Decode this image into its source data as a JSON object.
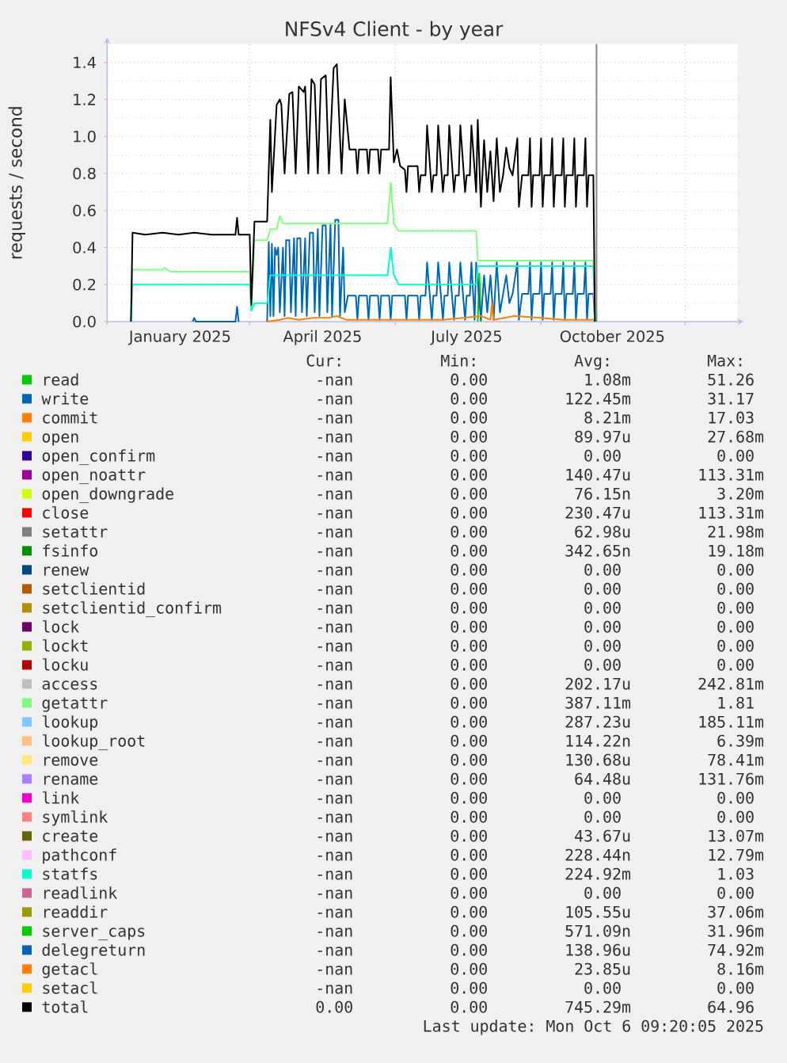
{
  "chart_data": {
    "type": "line",
    "title": "NFSv4 Client - by year",
    "ylabel": "requests / second",
    "xlim": [
      "2024-12-01",
      "2026-01-03"
    ],
    "xticks": [
      {
        "value": "2024-12-01",
        "label": null
      },
      {
        "value": "2025-01-16",
        "label": "January 2025"
      },
      {
        "value": "2025-03-01",
        "label": null
      },
      {
        "value": "2025-04-16",
        "label": "April 2025"
      },
      {
        "value": "2025-06-01",
        "label": null
      },
      {
        "value": "2025-07-16",
        "label": "July 2025"
      },
      {
        "value": "2025-09-01",
        "label": null
      },
      {
        "value": "2025-10-16",
        "label": "October 2025"
      },
      {
        "value": "2025-12-01",
        "label": null
      }
    ],
    "ylim": [
      0,
      1.5
    ],
    "yticks": [
      {
        "value": 0,
        "label": "0.0"
      },
      0.2,
      0.4,
      0.6,
      0.8,
      {
        "value": 1,
        "label": "1.0"
      },
      1.2,
      1.4
    ],
    "grid": true,
    "legend": "bottom",
    "ref_lines": [
      {
        "axis": "x",
        "value": "2025-10-06",
        "color": "#888888"
      }
    ],
    "series": [
      {
        "name": "read",
        "color": "#00cc00",
        "x": [
          "2025-07-23",
          "2025-07-24",
          "2025-07-25"
        ],
        "values": [
          0,
          0.26,
          0
        ]
      },
      {
        "name": "write",
        "color": "#0066b3",
        "x": [
          "2025-01-24",
          "2025-01-25",
          "2025-01-26",
          "2025-02-20",
          "2025-02-21",
          "2025-02-22",
          "2025-03-01",
          "2025-03-12",
          "2025-03-13",
          "2025-03-14",
          "2025-03-15",
          "2025-03-16",
          "2025-03-17",
          "2025-03-18",
          "2025-03-19",
          "2025-03-20",
          "2025-03-22",
          "2025-03-23",
          "2025-03-24",
          "2025-03-26",
          "2025-03-27",
          "2025-03-29",
          "2025-03-30",
          "2025-03-31",
          "2025-04-02",
          "2025-04-03",
          "2025-04-05",
          "2025-04-06",
          "2025-04-08",
          "2025-04-10",
          "2025-04-11",
          "2025-04-13",
          "2025-04-14",
          "2025-04-16",
          "2025-04-18",
          "2025-04-19",
          "2025-04-21",
          "2025-04-22",
          "2025-04-24",
          "2025-04-26",
          "2025-04-27",
          "2025-04-29",
          "2025-04-30",
          "2025-05-02",
          "2025-05-07",
          "2025-05-08",
          "2025-05-09",
          "2025-05-14",
          "2025-05-15",
          "2025-05-16",
          "2025-05-21",
          "2025-05-22",
          "2025-05-23",
          "2025-05-28",
          "2025-05-29",
          "2025-05-30",
          "2025-06-07",
          "2025-06-08",
          "2025-06-09",
          "2025-06-15",
          "2025-06-16",
          "2025-06-17",
          "2025-06-20",
          "2025-06-21",
          "2025-06-24",
          "2025-06-25",
          "2025-06-27",
          "2025-06-28",
          "2025-07-01",
          "2025-07-02",
          "2025-07-04",
          "2025-07-05",
          "2025-07-08",
          "2025-07-09",
          "2025-07-11",
          "2025-07-12",
          "2025-07-15",
          "2025-07-16",
          "2025-07-18",
          "2025-07-19",
          "2025-07-21",
          "2025-07-22",
          "2025-07-25",
          "2025-07-27",
          "2025-07-29",
          "2025-07-31",
          "2025-08-02",
          "2025-08-04",
          "2025-08-06",
          "2025-08-08",
          "2025-08-10",
          "2025-08-12",
          "2025-08-14",
          "2025-08-17",
          "2025-08-18",
          "2025-08-20",
          "2025-08-24",
          "2025-08-25",
          "2025-08-26",
          "2025-08-27",
          "2025-08-31",
          "2025-09-01",
          "2025-09-02",
          "2025-09-03",
          "2025-09-07",
          "2025-09-08",
          "2025-09-09",
          "2025-09-10",
          "2025-09-14",
          "2025-09-15",
          "2025-09-16",
          "2025-09-17",
          "2025-09-21",
          "2025-09-22",
          "2025-09-23",
          "2025-09-24",
          "2025-09-28",
          "2025-09-29",
          "2025-09-30",
          "2025-10-01",
          "2025-10-04",
          "2025-10-05"
        ],
        "values": [
          0,
          0.02,
          0,
          0,
          0.08,
          0,
          null,
          0,
          0.43,
          0.03,
          0.42,
          0.03,
          0.4,
          0.36,
          0.4,
          0.05,
          0.4,
          0.03,
          0.44,
          0.44,
          0.05,
          0.45,
          0.03,
          0.45,
          0.45,
          0.05,
          0.45,
          0.03,
          0.48,
          0.48,
          0.05,
          0.5,
          0.03,
          0.52,
          0.52,
          0.05,
          0.53,
          0.03,
          0.55,
          0.55,
          0.03,
          0.4,
          0.05,
          0.14,
          0.14,
          0.01,
          0.14,
          0.14,
          0.01,
          0.14,
          0.14,
          0.01,
          0.14,
          0.14,
          0.01,
          0.14,
          0.14,
          0.01,
          0.14,
          0.14,
          0.01,
          0.14,
          0.14,
          0.32,
          0.01,
          0.14,
          0.14,
          0.32,
          0.01,
          0.14,
          0.14,
          0.32,
          0.01,
          0.14,
          0.14,
          0.32,
          0.01,
          0.14,
          0.14,
          0.32,
          0.01,
          0.32,
          0.01,
          0.25,
          0.05,
          0.25,
          0.01,
          0.32,
          0.05,
          0.15,
          0.25,
          0.1,
          0.15,
          0.32,
          0.01,
          0.15,
          0.15,
          0.32,
          0.01,
          0.15,
          0.15,
          0.32,
          0.01,
          0.15,
          0.15,
          0.32,
          0.01,
          0.15,
          0.15,
          0.32,
          0.01,
          0.15,
          0.15,
          0.32,
          0.01,
          0.15,
          0.15,
          0.32,
          0.01,
          0.15,
          0.15,
          0
        ]
      },
      {
        "name": "commit",
        "color": "#ff8000",
        "x": [
          "2025-03-12",
          "2025-03-20",
          "2025-03-25",
          "2025-04-01",
          "2025-04-10",
          "2025-04-20",
          "2025-04-25",
          "2025-05-01",
          "2025-06-01",
          "2025-07-01",
          "2025-07-25",
          "2025-07-31",
          "2025-08-01",
          "2025-08-02",
          "2025-08-15",
          "2025-09-01",
          "2025-09-15",
          "2025-10-04",
          "2025-10-05"
        ],
        "values": [
          0,
          0.01,
          0.02,
          0.01,
          0.02,
          0.02,
          0.03,
          0.01,
          0.01,
          0.01,
          0.03,
          0.01,
          0.1,
          0.01,
          0.03,
          0.02,
          0.01,
          0.01,
          0
        ]
      },
      {
        "name": "open",
        "color": "#ffcc00"
      },
      {
        "name": "open_confirm",
        "color": "#330099"
      },
      {
        "name": "open_noattr",
        "color": "#990099"
      },
      {
        "name": "open_downgrade",
        "color": "#ccff00"
      },
      {
        "name": "close",
        "color": "#ff0000"
      },
      {
        "name": "setattr",
        "color": "#808080"
      },
      {
        "name": "fsinfo",
        "color": "#008f00"
      },
      {
        "name": "renew",
        "color": "#00487d"
      },
      {
        "name": "setclientid",
        "color": "#b35a00"
      },
      {
        "name": "setclientid_confirm",
        "color": "#b38f00"
      },
      {
        "name": "lock",
        "color": "#6b006b"
      },
      {
        "name": "lockt",
        "color": "#8fb300"
      },
      {
        "name": "locku",
        "color": "#b30000"
      },
      {
        "name": "access",
        "color": "#bebebe"
      },
      {
        "name": "getattr",
        "color": "#80ff80",
        "x": [
          "2024-12-16",
          "2024-12-17",
          "2025-01-05",
          "2025-01-06",
          "2025-01-10",
          "2025-03-01",
          "2025-03-02",
          "2025-03-04",
          "2025-03-12",
          "2025-03-14",
          "2025-03-18",
          "2025-03-20",
          "2025-03-22",
          "2025-05-27",
          "2025-05-29",
          "2025-05-31",
          "2025-06-03",
          "2025-07-22",
          "2025-07-23",
          "2025-10-04",
          "2025-10-05"
        ],
        "values": [
          0,
          0.28,
          0.28,
          0.29,
          0.27,
          0.27,
          0.06,
          0.44,
          0.44,
          0.5,
          0.5,
          0.57,
          0.53,
          0.53,
          0.75,
          0.53,
          0.49,
          0.49,
          0.33,
          0.33,
          0
        ]
      },
      {
        "name": "lookup",
        "color": "#80c9ff"
      },
      {
        "name": "lookup_root",
        "color": "#ffc080"
      },
      {
        "name": "remove",
        "color": "#ffe680"
      },
      {
        "name": "rename",
        "color": "#aa80ff"
      },
      {
        "name": "link",
        "color": "#ee00cc"
      },
      {
        "name": "symlink",
        "color": "#ff8080"
      },
      {
        "name": "create",
        "color": "#666600"
      },
      {
        "name": "pathconf",
        "color": "#ffbfff"
      },
      {
        "name": "statfs",
        "color": "#00ffcc",
        "x": [
          "2024-12-16",
          "2024-12-17",
          "2025-03-01",
          "2025-03-02",
          "2025-03-04",
          "2025-03-12",
          "2025-03-14",
          "2025-05-27",
          "2025-05-29",
          "2025-05-31",
          "2025-06-03",
          "2025-07-22",
          "2025-07-23",
          "2025-10-04",
          "2025-10-05"
        ],
        "values": [
          0,
          0.2,
          0.2,
          0.06,
          0.1,
          0.1,
          0.25,
          0.25,
          0.4,
          0.25,
          0.2,
          0.2,
          0.3,
          0.3,
          0
        ]
      },
      {
        "name": "readlink",
        "color": "#cc6699"
      },
      {
        "name": "readdir",
        "color": "#999900"
      },
      {
        "name": "server_caps",
        "color": "#00cc00"
      },
      {
        "name": "delegreturn",
        "color": "#0066b3"
      },
      {
        "name": "getacl",
        "color": "#ff8000"
      },
      {
        "name": "setacl",
        "color": "#ffcc00"
      },
      {
        "name": "total",
        "color": "#000000",
        "x": [
          "2024-12-16",
          "2024-12-17",
          "2024-12-25",
          "2025-01-05",
          "2025-01-15",
          "2025-01-25",
          "2025-02-05",
          "2025-02-20",
          "2025-02-21",
          "2025-02-22",
          "2025-03-01",
          "2025-03-02",
          "2025-03-04",
          "2025-03-12",
          "2025-03-14",
          "2025-03-15",
          "2025-03-18",
          "2025-03-20",
          "2025-03-21",
          "2025-03-23",
          "2025-03-26",
          "2025-03-28",
          "2025-03-30",
          "2025-04-01",
          "2025-04-04",
          "2025-04-05",
          "2025-04-07",
          "2025-04-09",
          "2025-04-11",
          "2025-04-13",
          "2025-04-15",
          "2025-04-18",
          "2025-04-20",
          "2025-04-23",
          "2025-04-25",
          "2025-04-28",
          "2025-04-30",
          "2025-05-03",
          "2025-05-07",
          "2025-05-08",
          "2025-05-09",
          "2025-05-14",
          "2025-05-15",
          "2025-05-16",
          "2025-05-21",
          "2025-05-22",
          "2025-05-23",
          "2025-05-28",
          "2025-05-29",
          "2025-05-31",
          "2025-06-02",
          "2025-06-04",
          "2025-06-07",
          "2025-06-08",
          "2025-06-09",
          "2025-06-15",
          "2025-06-16",
          "2025-06-17",
          "2025-06-20",
          "2025-06-21",
          "2025-06-24",
          "2025-06-25",
          "2025-06-27",
          "2025-06-28",
          "2025-07-01",
          "2025-07-02",
          "2025-07-04",
          "2025-07-05",
          "2025-07-08",
          "2025-07-09",
          "2025-07-11",
          "2025-07-12",
          "2025-07-15",
          "2025-07-16",
          "2025-07-18",
          "2025-07-19",
          "2025-07-22",
          "2025-07-23",
          "2025-07-25",
          "2025-07-27",
          "2025-07-29",
          "2025-07-31",
          "2025-08-02",
          "2025-08-04",
          "2025-08-06",
          "2025-08-08",
          "2025-08-10",
          "2025-08-12",
          "2025-08-14",
          "2025-08-17",
          "2025-08-18",
          "2025-08-20",
          "2025-08-24",
          "2025-08-25",
          "2025-08-26",
          "2025-08-27",
          "2025-08-31",
          "2025-09-01",
          "2025-09-02",
          "2025-09-03",
          "2025-09-07",
          "2025-09-08",
          "2025-09-09",
          "2025-09-10",
          "2025-09-14",
          "2025-09-15",
          "2025-09-16",
          "2025-09-17",
          "2025-09-21",
          "2025-09-22",
          "2025-09-23",
          "2025-09-24",
          "2025-09-28",
          "2025-09-29",
          "2025-09-30",
          "2025-10-01",
          "2025-10-04",
          "2025-10-05"
        ],
        "values": [
          0,
          0.48,
          0.47,
          0.48,
          0.47,
          0.48,
          0.47,
          0.47,
          0.56,
          0.47,
          0.47,
          0.09,
          0.54,
          0.54,
          1.09,
          0.7,
          1.17,
          1.2,
          1.17,
          0.8,
          1.23,
          1.24,
          0.8,
          1.27,
          1.24,
          1.27,
          0.8,
          1.31,
          1.28,
          0.8,
          1.31,
          1.33,
          0.8,
          1.37,
          1.39,
          0.8,
          1.2,
          0.93,
          0.93,
          0.8,
          0.93,
          0.93,
          0.8,
          0.93,
          0.93,
          0.8,
          0.93,
          0.93,
          1.32,
          0.86,
          0.93,
          0.84,
          0.82,
          0.7,
          0.84,
          0.84,
          0.7,
          0.79,
          0.79,
          1.06,
          0.7,
          0.79,
          0.79,
          1.06,
          0.7,
          0.79,
          0.79,
          1.06,
          0.7,
          0.79,
          0.79,
          1.06,
          0.7,
          0.79,
          0.79,
          1.06,
          0.7,
          1.09,
          0.62,
          0.98,
          0.7,
          0.92,
          0.65,
          0.99,
          0.7,
          0.79,
          0.94,
          0.83,
          0.79,
          0.99,
          0.62,
          0.79,
          0.79,
          0.99,
          0.62,
          0.79,
          0.79,
          0.99,
          0.62,
          0.79,
          0.79,
          0.99,
          0.62,
          0.79,
          0.79,
          0.99,
          0.62,
          0.79,
          0.79,
          0.99,
          0.62,
          0.79,
          0.79,
          0.99,
          0.62,
          0.79,
          0.79,
          0
        ]
      }
    ],
    "annotations": [
      "Cur:",
      "Min:",
      "Avg:",
      "Max:",
      "-nan",
      "0.00",
      "1.08m",
      "51.26",
      "-nan",
      "0.00",
      "122.45m",
      "31.17",
      "-nan",
      "0.00",
      "8.21m",
      "17.03",
      "-nan",
      "0.00",
      "89.97u",
      "27.68m",
      "-nan",
      "0.00",
      "0.00",
      "0.00",
      "-nan",
      "0.00",
      "140.47u",
      "113.31m",
      "-nan",
      "0.00",
      "76.15n",
      "3.20m",
      "-nan",
      "0.00",
      "230.47u",
      "113.31m",
      "-nan",
      "0.00",
      "62.98u",
      "21.98m",
      "-nan",
      "0.00",
      "342.65n",
      "19.18m",
      "-nan",
      "0.00",
      "0.00",
      "0.00",
      "-nan",
      "0.00",
      "0.00",
      "0.00",
      "-nan",
      "0.00",
      "0.00",
      "0.00",
      "-nan",
      "0.00",
      "0.00",
      "0.00",
      "-nan",
      "0.00",
      "0.00",
      "0.00",
      "-nan",
      "0.00",
      "0.00",
      "0.00",
      "-nan",
      "0.00",
      "202.17u",
      "242.81m",
      "-nan",
      "0.00",
      "387.11m",
      "1.81",
      "-nan",
      "0.00",
      "287.23u",
      "185.11m",
      "-nan",
      "0.00",
      "114.22n",
      "6.39m",
      "-nan",
      "0.00",
      "130.68u",
      "78.41m",
      "-nan",
      "0.00",
      "64.48u",
      "131.76m",
      "-nan",
      "0.00",
      "0.00",
      "0.00",
      "-nan",
      "0.00",
      "0.00",
      "0.00",
      "-nan",
      "0.00",
      "43.67u",
      "13.07m",
      "-nan",
      "0.00",
      "228.44n",
      "12.79m",
      "-nan",
      "0.00",
      "224.92m",
      "1.03",
      "-nan",
      "0.00",
      "0.00",
      "0.00",
      "-nan",
      "0.00",
      "105.55u",
      "37.06m",
      "-nan",
      "0.00",
      "571.09n",
      "31.96m",
      "-nan",
      "0.00",
      "138.96u",
      "74.92m",
      "-nan",
      "0.00",
      "23.85u",
      "8.16m",
      "-nan",
      "0.00",
      "0.00",
      "0.00",
      "0.00",
      "0.00",
      "745.29m",
      "64.96",
      "Last update: Mon Oct 6 09:20:05 2025"
    ]
  }
}
